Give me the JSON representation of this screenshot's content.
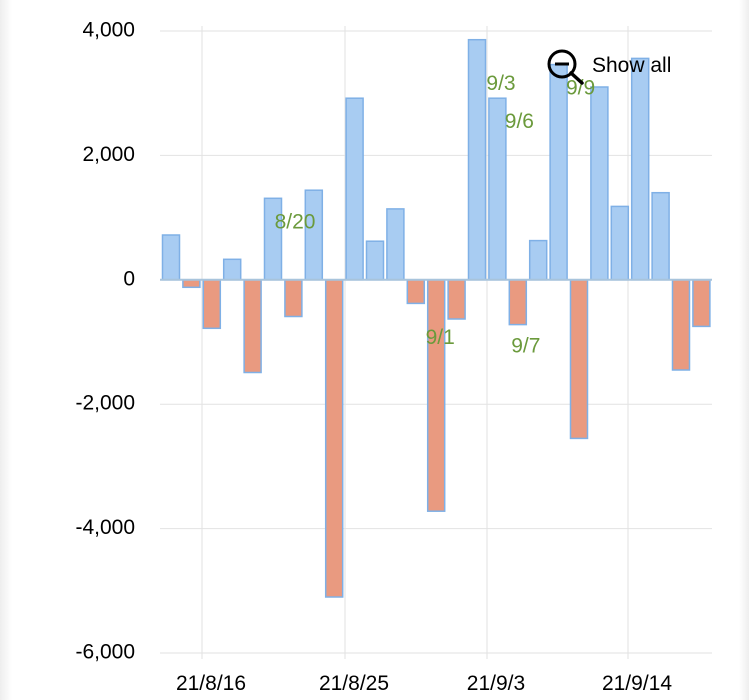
{
  "chart_data": {
    "type": "bar",
    "ylim": [
      -6000,
      4000
    ],
    "yticks": [
      4000,
      2000,
      0,
      -2000,
      -4000,
      -6000
    ],
    "ytick_labels": [
      "4,000",
      "2,000",
      "0",
      "-2,000",
      "-4,000",
      "-6,000"
    ],
    "xtick_labels": [
      "21/8/16",
      "21/8/25",
      "21/9/3",
      "21/9/14"
    ],
    "xtick_positions": [
      "2021-08-16",
      "2021-08-25",
      "2021-09-03",
      "2021-09-14"
    ],
    "grid": true,
    "dates": [
      "2021-08-13",
      "2021-08-16",
      "2021-08-17",
      "2021-08-18",
      "2021-08-19",
      "2021-08-20",
      "2021-08-23",
      "2021-08-24",
      "2021-08-25",
      "2021-08-26",
      "2021-08-27",
      "2021-08-30",
      "2021-08-31",
      "2021-09-01",
      "2021-09-02",
      "2021-09-03",
      "2021-09-06",
      "2021-09-07",
      "2021-09-08",
      "2021-09-09",
      "2021-09-10",
      "2021-09-13",
      "2021-09-14",
      "2021-09-15",
      "2021-09-16",
      "2021-09-17",
      "2021-09-21"
    ],
    "values": [
      720,
      -120,
      -780,
      330,
      -1490,
      1310,
      -590,
      1440,
      -5100,
      2920,
      620,
      1140,
      -380,
      -3720,
      -630,
      3860,
      2920,
      -720,
      630,
      3460,
      -2550,
      3100,
      1180,
      3560,
      1400,
      -1450,
      -750
    ],
    "annotations": [
      {
        "label": "8/20",
        "date": "2021-08-20"
      },
      {
        "label": "9/1",
        "date": "2021-09-01"
      },
      {
        "label": "9/3",
        "date": "2021-09-03"
      },
      {
        "label": "9/6",
        "date": "2021-09-06"
      },
      {
        "label": "9/7",
        "date": "2021-09-07"
      },
      {
        "label": "9/9",
        "date": "2021-09-09"
      }
    ],
    "colors": {
      "positive": "#a8ccf2",
      "negative": "#e99a80",
      "bar_border": "#7fb0e6",
      "annotation": "#6b9a3c",
      "grid": "#e2e2e2",
      "axis": "#a8c4dc"
    }
  },
  "controls": {
    "show_all_label": "Show all",
    "show_all_icon": "zoom-out-icon"
  }
}
